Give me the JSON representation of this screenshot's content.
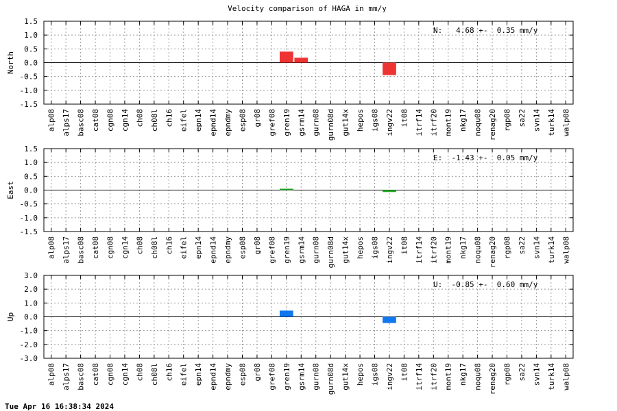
{
  "title": "Velocity comparison of HAGA in mm/y",
  "timestamp": "Tue Apr 16 16:38:34 2024",
  "chart_data": {
    "type": "bar",
    "categories": [
      "alp08",
      "alps17",
      "basc08",
      "cat08",
      "cgn08",
      "cgn14",
      "ch08",
      "ch08l",
      "ch16",
      "eifel",
      "epn14",
      "epnd14",
      "epndmy",
      "esp08",
      "gr08",
      "gref08",
      "gren19",
      "gsrm14",
      "gurn08",
      "gurn08d",
      "gut14x",
      "hepos",
      "igs08",
      "ingv22",
      "it08",
      "itrf14",
      "itrf20",
      "mont19",
      "nkg17",
      "noqu08",
      "renag20",
      "rgp08",
      "sa22",
      "svn14",
      "turk14",
      "walp08"
    ],
    "panels": [
      {
        "name": "North",
        "ylabel": "North",
        "color": "#ee3333",
        "ylim": [
          -1.5,
          1.5
        ],
        "yticks": [
          -1.5,
          -1.0,
          -0.5,
          0.0,
          0.5,
          1.0,
          1.5
        ],
        "ytick_labels": [
          "-1.5",
          "-1.0",
          "-0.5",
          "0.0",
          "0.5",
          "1.0",
          "1.5"
        ],
        "annotation": "N:   4.68 +-  0.35 mm/y",
        "values": [
          0,
          0,
          0,
          0,
          0,
          0,
          0,
          0,
          0,
          0,
          0,
          0,
          0,
          0,
          0,
          0,
          0.4,
          0.18,
          0,
          0,
          0,
          0,
          0,
          -0.45,
          0,
          0,
          0,
          0,
          0,
          0,
          0,
          0,
          0,
          0,
          0,
          0
        ]
      },
      {
        "name": "East",
        "ylabel": "East",
        "color": "#22aa22",
        "ylim": [
          -1.5,
          1.5
        ],
        "yticks": [
          -1.5,
          -1.0,
          -0.5,
          0.0,
          0.5,
          1.0,
          1.5
        ],
        "ytick_labels": [
          "-1.5",
          "-1.0",
          "-0.5",
          "0.0",
          "0.5",
          "1.0",
          "1.5"
        ],
        "annotation": "E:  -1.43 +-  0.05 mm/y",
        "values": [
          0,
          0,
          0,
          0,
          0,
          0,
          0,
          0,
          0,
          0,
          0,
          0,
          0,
          0,
          0,
          0,
          0.05,
          0,
          0,
          0,
          0,
          0,
          0,
          -0.07,
          0,
          0,
          0,
          0,
          0,
          0,
          0,
          0,
          0,
          0,
          0,
          0
        ]
      },
      {
        "name": "Up",
        "ylabel": "Up",
        "color": "#1177ee",
        "ylim": [
          -3.0,
          3.0
        ],
        "yticks": [
          -3.0,
          -2.0,
          -1.0,
          0.0,
          1.0,
          2.0,
          3.0
        ],
        "ytick_labels": [
          "-3.0",
          "-2.0",
          "-1.0",
          "0.0",
          "1.0",
          "2.0",
          "3.0"
        ],
        "annotation": "U:  -0.85 +-  0.60 mm/y",
        "values": [
          0,
          0,
          0,
          0,
          0,
          0,
          0,
          0,
          0,
          0,
          0,
          0,
          0,
          0,
          0,
          0,
          0.45,
          0,
          0,
          0,
          0,
          0,
          0,
          -0.45,
          0,
          0,
          0,
          0,
          0,
          0,
          0,
          0,
          0,
          0,
          0,
          0
        ]
      }
    ]
  }
}
